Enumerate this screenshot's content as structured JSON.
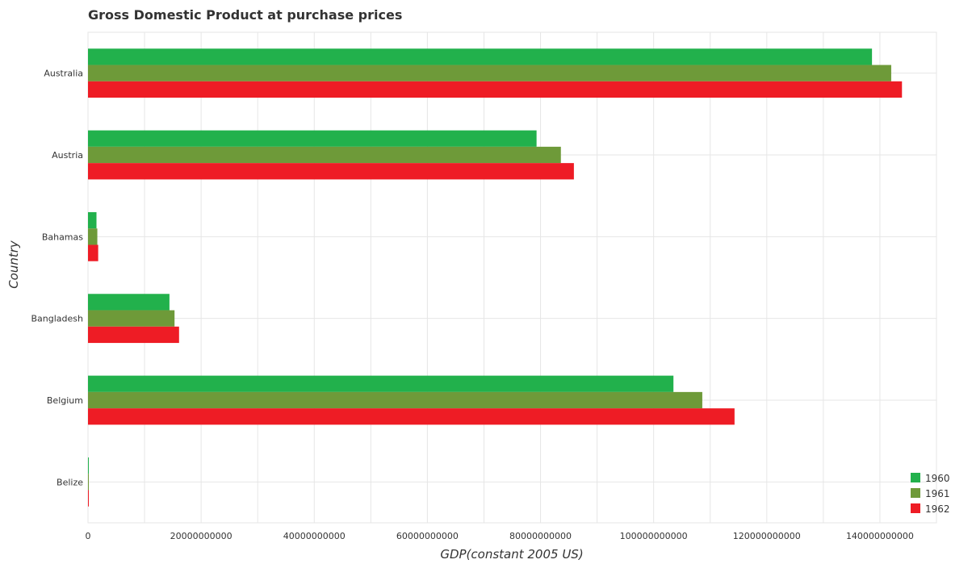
{
  "chart_data": {
    "type": "bar",
    "orientation": "horizontal",
    "title": "Gross Domestic Product at purchase prices",
    "xlabel": "GDP(constant 2005 US)",
    "ylabel": "Country",
    "categories": [
      "Australia",
      "Austria",
      "Bahamas",
      "Bangladesh",
      "Belgium",
      "Belize"
    ],
    "xlim": [
      0,
      150000000000
    ],
    "xticks": [
      0,
      20000000000,
      40000000000,
      60000000000,
      80000000000,
      100000000000,
      120000000000,
      140000000000
    ],
    "xtick_labels": [
      "0",
      "20000000000",
      "40000000000",
      "60000000000",
      "80000000000",
      "100000000000",
      "120000000000",
      "140000000000"
    ],
    "grid": true,
    "legend_position": "bottom-right",
    "series": [
      {
        "name": "1960",
        "color": "#22b14c",
        "values": [
          138600000000,
          79300000000,
          1500000000,
          14400000000,
          103500000000,
          90000000
        ]
      },
      {
        "name": "1961",
        "color": "#6e9a39",
        "values": [
          142000000000,
          83600000000,
          1650000000,
          15300000000,
          108600000000,
          95000000
        ]
      },
      {
        "name": "1962",
        "color": "#ee1c25",
        "values": [
          143900000000,
          85900000000,
          1800000000,
          16100000000,
          114300000000,
          100000000
        ]
      }
    ]
  }
}
